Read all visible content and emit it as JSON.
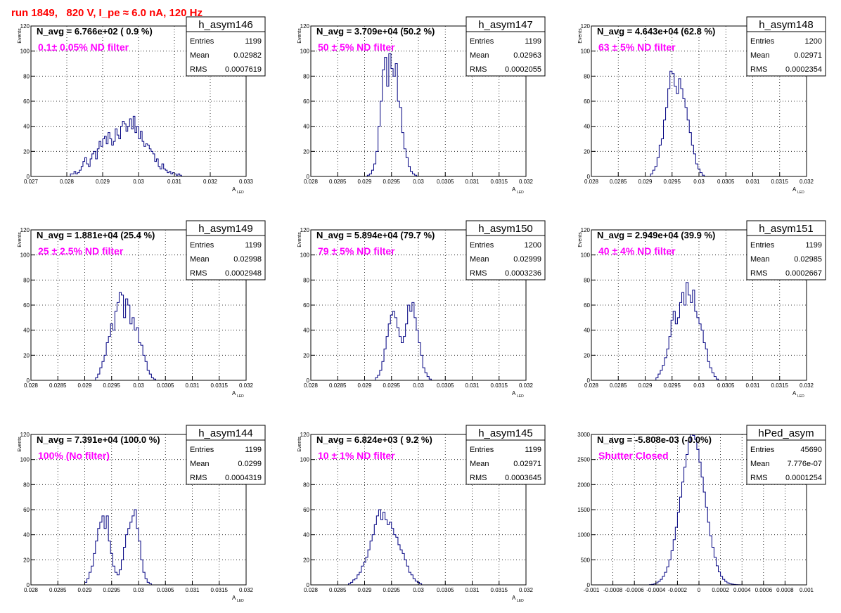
{
  "page_title": "run 1849,   820 V, I_pe ≈ 6.0 nA, 120 Hz",
  "colors": {
    "title": "#ff0000",
    "annotation": "#ff00ff",
    "histogram": "#000080",
    "grid": "#000000"
  },
  "stats_labels": {
    "entries": "Entries",
    "mean": "Mean",
    "rms": "RMS"
  },
  "chart_data": [
    {
      "type": "histogram",
      "name": "h_asym146",
      "navg": "N_avg = 6.766e+02 ( 0.9 %)",
      "annotation": "0.1± 0.05% ND filter",
      "entries": "1199",
      "mean": "0.02982",
      "rms": "0.0007619",
      "ylabel": "Events",
      "xlabel": "A",
      "xlabel_sub": "LED",
      "xlim": [
        0.027,
        0.033
      ],
      "ylim": [
        0,
        120
      ],
      "xticks": [
        0.027,
        0.028,
        0.029,
        0.03,
        0.031,
        0.032,
        0.033
      ],
      "xtick_labels": [
        "0.027",
        "0.028",
        "0.029",
        "0.03",
        "0.031",
        "0.032",
        "0.033"
      ],
      "yticks": [
        0,
        20,
        40,
        60,
        80,
        100,
        120
      ],
      "ytick_labels": [
        "0",
        "20",
        "40",
        "60",
        "80",
        "100",
        "120"
      ],
      "bins": {
        "start": 0.0281,
        "width": 5e-05,
        "counts": [
          2,
          2,
          4,
          2,
          3,
          5,
          8,
          12,
          15,
          10,
          8,
          14,
          18,
          20,
          14,
          22,
          28,
          24,
          30,
          32,
          26,
          35,
          30,
          25,
          28,
          38,
          33,
          30,
          40,
          44,
          42,
          36,
          40,
          46,
          38,
          48,
          35,
          40,
          30,
          36,
          28,
          24,
          26,
          25,
          22,
          20,
          18,
          12,
          14,
          8,
          6,
          10,
          6,
          5,
          3,
          4,
          2,
          3,
          2,
          1,
          2,
          1
        ]
      }
    },
    {
      "type": "histogram",
      "name": "h_asym147",
      "navg": "N_avg = 3.709e+04 (50.2 %)",
      "annotation": "50 ± 5% ND filter",
      "entries": "1199",
      "mean": "0.02963",
      "rms": "0.0002055",
      "ylabel": "Events",
      "xlabel": "A",
      "xlabel_sub": "LED",
      "xlim": [
        0.028,
        0.032
      ],
      "ylim": [
        0,
        120
      ],
      "xticks": [
        0.028,
        0.0285,
        0.029,
        0.0295,
        0.03,
        0.0305,
        0.031,
        0.0315,
        0.032
      ],
      "xtick_labels": [
        "0.028",
        "0.0285",
        "0.029",
        "0.0295",
        "0.03",
        "0.0305",
        "0.031",
        "0.0315",
        "0.032"
      ],
      "yticks": [
        0,
        20,
        40,
        60,
        80,
        100,
        120
      ],
      "ytick_labels": [
        "0",
        "20",
        "40",
        "60",
        "80",
        "100",
        "120"
      ],
      "bins": {
        "start": 0.02905,
        "width": 4e-05,
        "counts": [
          1,
          2,
          5,
          10,
          20,
          40,
          60,
          85,
          95,
          72,
          98,
          86,
          80,
          90,
          60,
          55,
          35,
          22,
          15,
          8,
          4,
          2,
          1
        ]
      }
    },
    {
      "type": "histogram",
      "name": "h_asym148",
      "navg": "N_avg = 4.643e+04 (62.8 %)",
      "annotation": "63 ± 5% ND filter",
      "entries": "1200",
      "mean": "0.02971",
      "rms": "0.0002354",
      "ylabel": "Events",
      "xlabel": "A",
      "xlabel_sub": "LED",
      "xlim": [
        0.028,
        0.032
      ],
      "ylim": [
        0,
        120
      ],
      "xticks": [
        0.028,
        0.0285,
        0.029,
        0.0295,
        0.03,
        0.0305,
        0.031,
        0.0315,
        0.032
      ],
      "xtick_labels": [
        "0.028",
        "0.0285",
        "0.029",
        "0.0295",
        "0.03",
        "0.0305",
        "0.031",
        "0.0315",
        "0.032"
      ],
      "yticks": [
        0,
        20,
        40,
        60,
        80,
        100,
        120
      ],
      "ytick_labels": [
        "0",
        "20",
        "40",
        "60",
        "80",
        "100",
        "120"
      ],
      "bins": {
        "start": 0.0291,
        "width": 4e-05,
        "counts": [
          2,
          5,
          8,
          15,
          25,
          30,
          45,
          55,
          70,
          84,
          82,
          72,
          66,
          78,
          70,
          62,
          55,
          45,
          35,
          25,
          18,
          10,
          6,
          3,
          1
        ]
      }
    },
    {
      "type": "histogram",
      "name": "h_asym149",
      "navg": "N_avg = 1.881e+04 (25.4 %)",
      "annotation": "25 ± 2.5% ND filter",
      "entries": "1199",
      "mean": "0.02998",
      "rms": "0.0002948",
      "ylabel": "Events",
      "xlabel": "A",
      "xlabel_sub": "LED",
      "xlim": [
        0.028,
        0.032
      ],
      "ylim": [
        0,
        120
      ],
      "xticks": [
        0.028,
        0.0285,
        0.029,
        0.0295,
        0.03,
        0.0305,
        0.031,
        0.0315,
        0.032
      ],
      "xtick_labels": [
        "0.028",
        "0.0285",
        "0.029",
        "0.0295",
        "0.03",
        "0.0305",
        "0.031",
        "0.0315",
        "0.032"
      ],
      "yticks": [
        0,
        20,
        40,
        60,
        80,
        100,
        120
      ],
      "ytick_labels": [
        "0",
        "20",
        "40",
        "60",
        "80",
        "100",
        "120"
      ],
      "bins": {
        "start": 0.0292,
        "width": 4e-05,
        "counts": [
          2,
          5,
          10,
          15,
          20,
          30,
          35,
          45,
          40,
          55,
          62,
          70,
          68,
          50,
          65,
          60,
          45,
          50,
          40,
          42,
          30,
          28,
          20,
          15,
          8,
          5,
          2,
          1
        ]
      }
    },
    {
      "type": "histogram",
      "name": "h_asym150",
      "navg": "N_avg = 5.894e+04 (79.7 %)",
      "annotation": "79 ± 5% ND filter",
      "entries": "1200",
      "mean": "0.02999",
      "rms": "0.0003236",
      "ylabel": "Events",
      "xlabel": "A",
      "xlabel_sub": "LED",
      "xlim": [
        0.028,
        0.032
      ],
      "ylim": [
        0,
        120
      ],
      "xticks": [
        0.028,
        0.0285,
        0.029,
        0.0295,
        0.03,
        0.0305,
        0.031,
        0.0315,
        0.032
      ],
      "xtick_labels": [
        "0.028",
        "0.0285",
        "0.029",
        "0.0295",
        "0.03",
        "0.0305",
        "0.031",
        "0.0315",
        "0.032"
      ],
      "yticks": [
        0,
        20,
        40,
        60,
        80,
        100,
        120
      ],
      "ytick_labels": [
        "0",
        "20",
        "40",
        "60",
        "80",
        "100",
        "120"
      ],
      "bins": {
        "start": 0.0292,
        "width": 4e-05,
        "counts": [
          2,
          4,
          8,
          15,
          25,
          35,
          45,
          52,
          55,
          50,
          42,
          35,
          30,
          35,
          45,
          60,
          55,
          62,
          50,
          40,
          30,
          20,
          10,
          6,
          3,
          1
        ]
      }
    },
    {
      "type": "histogram",
      "name": "h_asym151",
      "navg": "N_avg = 2.949e+04 (39.9 %)",
      "annotation": "40 ± 4% ND filter",
      "entries": "1199",
      "mean": "0.02985",
      "rms": "0.0002667",
      "ylabel": "Events",
      "xlabel": "A",
      "xlabel_sub": "LED",
      "xlim": [
        0.028,
        0.032
      ],
      "ylim": [
        0,
        120
      ],
      "xticks": [
        0.028,
        0.0285,
        0.029,
        0.0295,
        0.03,
        0.0305,
        0.031,
        0.0315,
        0.032
      ],
      "xtick_labels": [
        "0.028",
        "0.0285",
        "0.029",
        "0.0295",
        "0.03",
        "0.0305",
        "0.031",
        "0.0315",
        "0.032"
      ],
      "yticks": [
        0,
        20,
        40,
        60,
        80,
        100,
        120
      ],
      "ytick_labels": [
        "0",
        "20",
        "40",
        "60",
        "80",
        "100",
        "120"
      ],
      "bins": {
        "start": 0.0292,
        "width": 4e-05,
        "counts": [
          2,
          5,
          8,
          12,
          18,
          25,
          35,
          48,
          55,
          45,
          50,
          62,
          70,
          60,
          78,
          68,
          62,
          72,
          55,
          50,
          45,
          40,
          30,
          25,
          15,
          10,
          6,
          3,
          1
        ]
      }
    },
    {
      "type": "histogram",
      "name": "h_asym144",
      "navg": "N_avg = 7.391e+04 (100.0 %)",
      "annotation": "100% (No filter)",
      "entries": "1199",
      "mean": "0.0299",
      "rms": "0.0004319",
      "ylabel": "Events",
      "xlabel": "A",
      "xlabel_sub": "LED",
      "xlim": [
        0.028,
        0.032
      ],
      "ylim": [
        0,
        120
      ],
      "xticks": [
        0.028,
        0.0285,
        0.029,
        0.0295,
        0.03,
        0.0305,
        0.031,
        0.0315,
        0.032
      ],
      "xtick_labels": [
        "0.028",
        "0.0285",
        "0.029",
        "0.0295",
        "0.03",
        "0.0305",
        "0.031",
        "0.0315",
        "0.032"
      ],
      "yticks": [
        0,
        20,
        40,
        60,
        80,
        100,
        120
      ],
      "ytick_labels": [
        "0",
        "20",
        "40",
        "60",
        "80",
        "100",
        "120"
      ],
      "bins": {
        "start": 0.029,
        "width": 4e-05,
        "counts": [
          2,
          5,
          10,
          15,
          25,
          35,
          45,
          50,
          55,
          45,
          55,
          35,
          25,
          15,
          10,
          8,
          12,
          20,
          30,
          40,
          45,
          50,
          55,
          60,
          45,
          35,
          20,
          10,
          5,
          2,
          1
        ]
      }
    },
    {
      "type": "histogram",
      "name": "h_asym145",
      "navg": "N_avg = 6.824e+03 ( 9.2 %)",
      "annotation": "10 ± 1% ND filter",
      "entries": "1199",
      "mean": "0.02971",
      "rms": "0.0003645",
      "ylabel": "Events",
      "xlabel": "A",
      "xlabel_sub": "LED",
      "xlim": [
        0.028,
        0.032
      ],
      "ylim": [
        0,
        120
      ],
      "xticks": [
        0.028,
        0.0285,
        0.029,
        0.0295,
        0.03,
        0.0305,
        0.031,
        0.0315,
        0.032
      ],
      "xtick_labels": [
        "0.028",
        "0.0285",
        "0.029",
        "0.0295",
        "0.03",
        "0.0305",
        "0.031",
        "0.0315",
        "0.032"
      ],
      "yticks": [
        0,
        20,
        40,
        60,
        80,
        100,
        120
      ],
      "ytick_labels": [
        "0",
        "20",
        "40",
        "60",
        "80",
        "100",
        "120"
      ],
      "bins": {
        "start": 0.0287,
        "width": 4e-05,
        "counts": [
          1,
          2,
          4,
          5,
          8,
          10,
          15,
          18,
          22,
          28,
          35,
          40,
          48,
          55,
          60,
          52,
          58,
          52,
          48,
          50,
          45,
          40,
          38,
          32,
          28,
          25,
          20,
          15,
          10,
          8,
          5,
          3,
          2,
          1
        ]
      }
    },
    {
      "type": "histogram",
      "name": "hPed_asym",
      "navg": "N_avg = -5.808e-03 (-0.0%)",
      "annotation": "Shutter Closed",
      "entries": "45690",
      "mean": "7.776e-07",
      "rms": "0.0001254",
      "ylabel": "",
      "xlabel": "",
      "xlabel_sub": "",
      "xlim": [
        -0.001,
        0.001
      ],
      "ylim": [
        0,
        3000
      ],
      "xticks": [
        -0.001,
        -0.0008,
        -0.0006,
        -0.0004,
        -0.0002,
        0,
        0.0002,
        0.0004,
        0.0006,
        0.0008,
        0.001
      ],
      "xtick_labels": [
        "-0.001",
        "-0.0008",
        "-0.0006",
        "-0.0004",
        "-0.0002",
        "0",
        "0.0002",
        "0.0004",
        "0.0006",
        "0.0008",
        "0.001"
      ],
      "yticks": [
        0,
        500,
        1000,
        1500,
        2000,
        2500,
        3000
      ],
      "ytick_labels": [
        "0",
        "500",
        "1000",
        "1500",
        "2000",
        "2500",
        "3000"
      ],
      "bins": {
        "start": -0.00046,
        "width": 2e-05,
        "counts": [
          5,
          10,
          20,
          40,
          70,
          110,
          170,
          250,
          360,
          500,
          680,
          900,
          1150,
          1450,
          1750,
          2050,
          2350,
          2600,
          2850,
          3000,
          2980,
          2900,
          2700,
          2450,
          2150,
          1850,
          1550,
          1250,
          980,
          750,
          550,
          380,
          260,
          170,
          110,
          70,
          40,
          25,
          15,
          8,
          5,
          3,
          2
        ]
      }
    }
  ]
}
